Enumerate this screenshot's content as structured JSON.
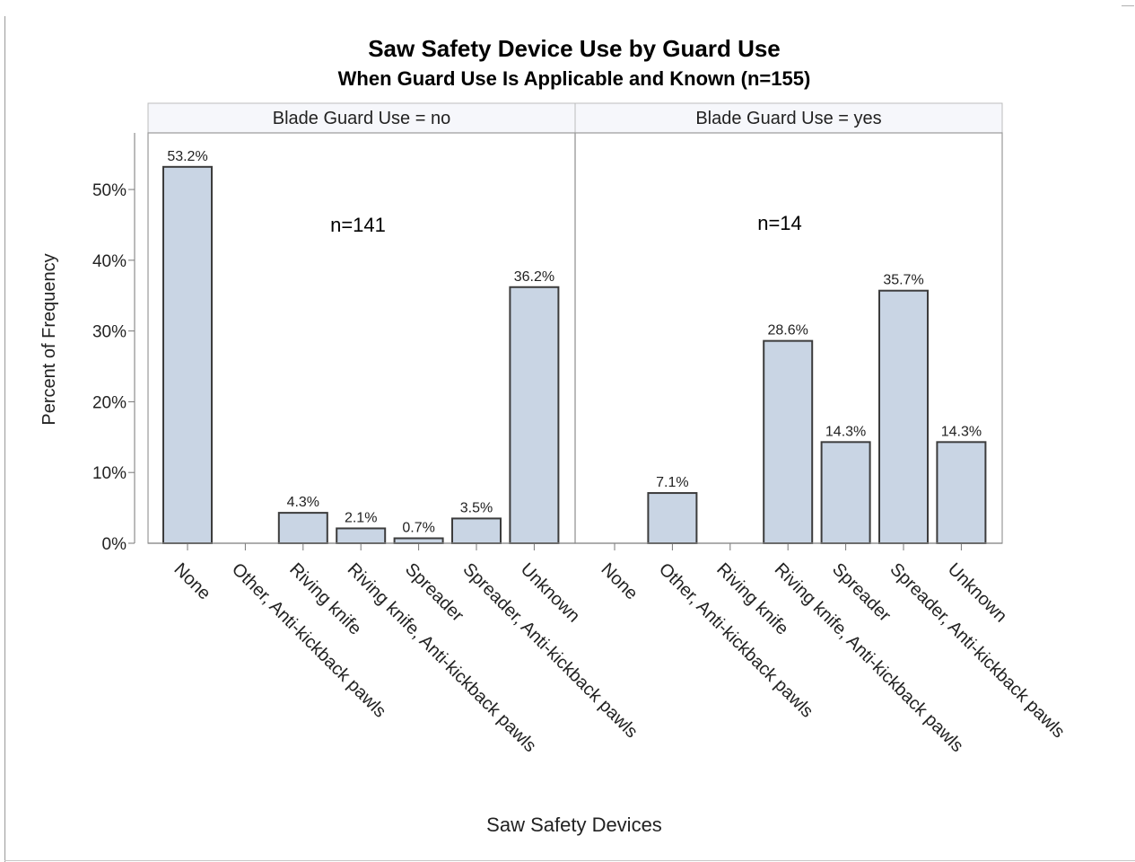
{
  "chart_data": {
    "type": "bar",
    "title": "Saw Safety Device Use by Guard Use",
    "subtitle": "When Guard Use Is Applicable and Known (n=155)",
    "xlabel": "Saw Safety Devices",
    "ylabel": "Percent of Frequency",
    "ylim": [
      0,
      58
    ],
    "yticks": [
      "0%",
      "10%",
      "20%",
      "30%",
      "40%",
      "50%"
    ],
    "categories": [
      "None",
      "Other, Anti-kickback pawls",
      "Riving knife",
      "Riving knife, Anti-kickback pawls",
      "Spreader",
      "Spreader, Anti-kickback pawls",
      "Unknown"
    ],
    "bar_color": "#c9d5e4",
    "bar_stroke": "#3c3c3c",
    "panels": [
      {
        "header": "Blade Guard Use = no",
        "annotation": "n=141",
        "values": [
          53.2,
          null,
          4.3,
          2.1,
          0.7,
          3.5,
          36.2
        ],
        "labels": [
          "53.2%",
          "",
          "4.3%",
          "2.1%",
          "0.7%",
          "3.5%",
          "36.2%"
        ]
      },
      {
        "header": "Blade Guard Use = yes",
        "annotation": "n=14",
        "values": [
          null,
          7.1,
          null,
          28.6,
          14.3,
          35.7,
          14.3
        ],
        "labels": [
          "",
          "7.1%",
          "",
          "28.6%",
          "14.3%",
          "35.7%",
          "14.3%"
        ]
      }
    ]
  }
}
